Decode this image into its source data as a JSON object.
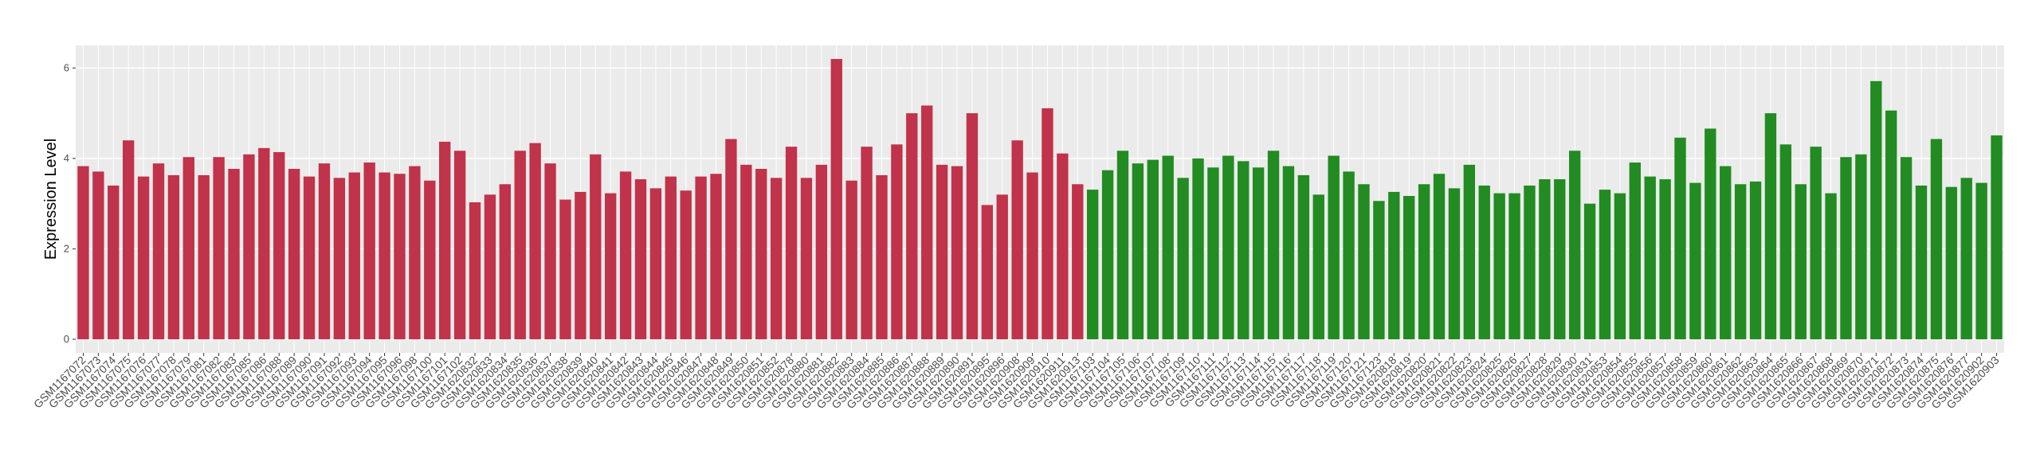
{
  "chart_data": {
    "type": "bar",
    "y_label": "Expression Level",
    "categories": [
      "GSM1167072",
      "GSM1167073",
      "GSM1167074",
      "GSM1167075",
      "GSM1167076",
      "GSM1167077",
      "GSM1167078",
      "GSM1167079",
      "GSM1167081",
      "GSM1167082",
      "GSM1167083",
      "GSM1167085",
      "GSM1167086",
      "GSM1167088",
      "GSM1167089",
      "GSM1167090",
      "GSM1167091",
      "GSM1167092",
      "GSM1167093",
      "GSM1167094",
      "GSM1167095",
      "GSM1167096",
      "GSM1167098",
      "GSM1167100",
      "GSM1167101",
      "GSM1167102",
      "GSM1620832",
      "GSM1620833",
      "GSM1620834",
      "GSM1620835",
      "GSM1620836",
      "GSM1620837",
      "GSM1620838",
      "GSM1620839",
      "GSM1620840",
      "GSM1620841",
      "GSM1620842",
      "GSM1620843",
      "GSM1620844",
      "GSM1620845",
      "GSM1620846",
      "GSM1620847",
      "GSM1620848",
      "GSM1620849",
      "GSM1620850",
      "GSM1620851",
      "GSM1620852",
      "GSM1620878",
      "GSM1620880",
      "GSM1620881",
      "GSM1620882",
      "GSM1620883",
      "GSM1620884",
      "GSM1620885",
      "GSM1620886",
      "GSM1620887",
      "GSM1620888",
      "GSM1620889",
      "GSM1620890",
      "GSM1620891",
      "GSM1620895",
      "GSM1620896",
      "GSM1620908",
      "GSM1620909",
      "GSM1620910",
      "GSM1620911",
      "GSM1620913",
      "GSM1167103",
      "GSM1167104",
      "GSM1167105",
      "GSM1167106",
      "GSM1167107",
      "GSM1167108",
      "GSM1167109",
      "GSM1167110",
      "GSM1167111",
      "GSM1167112",
      "GSM1167113",
      "GSM1167114",
      "GSM1167115",
      "GSM1167116",
      "GSM1167117",
      "GSM1167118",
      "GSM1167119",
      "GSM1167120",
      "GSM1167121",
      "GSM1167123",
      "GSM1620818",
      "GSM1620819",
      "GSM1620820",
      "GSM1620821",
      "GSM1620822",
      "GSM1620823",
      "GSM1620824",
      "GSM1620825",
      "GSM1620826",
      "GSM1620827",
      "GSM1620828",
      "GSM1620829",
      "GSM1620830",
      "GSM1620831",
      "GSM1620853",
      "GSM1620854",
      "GSM1620855",
      "GSM1620856",
      "GSM1620857",
      "GSM1620858",
      "GSM1620859",
      "GSM1620860",
      "GSM1620861",
      "GSM1620862",
      "GSM1620863",
      "GSM1620864",
      "GSM1620865",
      "GSM1620866",
      "GSM1620867",
      "GSM1620868",
      "GSM1620869",
      "GSM1620870",
      "GSM1620871",
      "GSM1620872",
      "GSM1620873",
      "GSM1620874",
      "GSM1620875",
      "GSM1620876",
      "GSM1620877",
      "GSM1620902",
      "GSM1620903"
    ],
    "values": [
      3.83,
      3.71,
      3.4,
      4.4,
      3.6,
      3.89,
      3.63,
      4.03,
      3.63,
      4.03,
      3.77,
      4.09,
      4.23,
      4.14,
      3.77,
      3.6,
      3.89,
      3.57,
      3.69,
      3.91,
      3.69,
      3.66,
      3.83,
      3.51,
      4.37,
      4.17,
      3.03,
      3.2,
      3.43,
      4.17,
      4.34,
      3.89,
      3.09,
      3.26,
      4.09,
      3.23,
      3.71,
      3.54,
      3.34,
      3.6,
      3.29,
      3.6,
      3.66,
      4.43,
      3.86,
      3.77,
      3.57,
      4.26,
      3.57,
      3.86,
      6.2,
      3.51,
      4.26,
      3.63,
      4.31,
      5.0,
      5.17,
      3.86,
      3.83,
      5.0,
      2.97,
      3.2,
      4.4,
      3.69,
      5.11,
      4.11,
      3.43,
      3.31,
      3.74,
      4.17,
      3.89,
      3.97,
      4.06,
      3.57,
      4.0,
      3.8,
      4.06,
      3.94,
      3.8,
      4.17,
      3.83,
      3.63,
      3.2,
      4.06,
      3.71,
      3.43,
      3.06,
      3.26,
      3.17,
      3.43,
      3.66,
      3.34,
      3.86,
      3.4,
      3.23,
      3.23,
      3.4,
      3.54,
      3.54,
      4.17,
      3.0,
      3.31,
      3.23,
      3.91,
      3.6,
      3.54,
      4.46,
      3.46,
      4.66,
      3.83,
      3.43,
      3.49,
      5.0,
      4.31,
      3.43,
      4.26,
      3.23,
      4.03,
      4.09,
      5.71,
      5.06,
      4.03,
      3.4,
      4.43,
      3.37,
      3.57,
      3.46,
      4.51
    ],
    "colors": [
      "#c0334a",
      "#c0334a",
      "#c0334a",
      "#c0334a",
      "#c0334a",
      "#c0334a",
      "#c0334a",
      "#c0334a",
      "#c0334a",
      "#c0334a",
      "#c0334a",
      "#c0334a",
      "#c0334a",
      "#c0334a",
      "#c0334a",
      "#c0334a",
      "#c0334a",
      "#c0334a",
      "#c0334a",
      "#c0334a",
      "#c0334a",
      "#c0334a",
      "#c0334a",
      "#c0334a",
      "#c0334a",
      "#c0334a",
      "#c0334a",
      "#c0334a",
      "#c0334a",
      "#c0334a",
      "#c0334a",
      "#c0334a",
      "#c0334a",
      "#c0334a",
      "#c0334a",
      "#c0334a",
      "#c0334a",
      "#c0334a",
      "#c0334a",
      "#c0334a",
      "#c0334a",
      "#c0334a",
      "#c0334a",
      "#c0334a",
      "#c0334a",
      "#c0334a",
      "#c0334a",
      "#c0334a",
      "#c0334a",
      "#c0334a",
      "#c0334a",
      "#c0334a",
      "#c0334a",
      "#c0334a",
      "#c0334a",
      "#c0334a",
      "#c0334a",
      "#c0334a",
      "#c0334a",
      "#c0334a",
      "#c0334a",
      "#c0334a",
      "#c0334a",
      "#c0334a",
      "#c0334a",
      "#c0334a",
      "#c0334a",
      "#228b22",
      "#228b22",
      "#228b22",
      "#228b22",
      "#228b22",
      "#228b22",
      "#228b22",
      "#228b22",
      "#228b22",
      "#228b22",
      "#228b22",
      "#228b22",
      "#228b22",
      "#228b22",
      "#228b22",
      "#228b22",
      "#228b22",
      "#228b22",
      "#228b22",
      "#228b22",
      "#228b22",
      "#228b22",
      "#228b22",
      "#228b22",
      "#228b22",
      "#228b22",
      "#228b22",
      "#228b22",
      "#228b22",
      "#228b22",
      "#228b22",
      "#228b22",
      "#228b22",
      "#228b22",
      "#228b22",
      "#228b22",
      "#228b22",
      "#228b22",
      "#228b22",
      "#228b22",
      "#228b22",
      "#228b22",
      "#228b22",
      "#228b22",
      "#228b22",
      "#228b22",
      "#228b22",
      "#228b22",
      "#228b22",
      "#228b22",
      "#228b22",
      "#228b22",
      "#228b22",
      "#228b22",
      "#228b22",
      "#228b22",
      "#228b22",
      "#228b22",
      "#228b22",
      "#228b22",
      "#228b22"
    ],
    "ylim": [
      -0.3,
      6.5
    ],
    "yticks": [
      0,
      2,
      4,
      6
    ],
    "grid": true
  }
}
